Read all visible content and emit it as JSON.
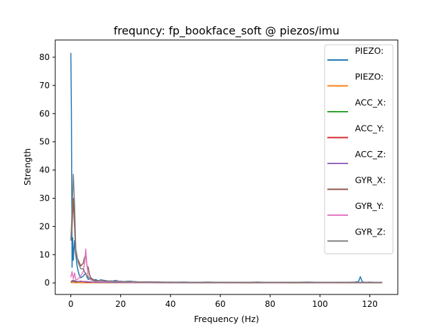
{
  "chart_data": {
    "type": "line",
    "title": "frequncy: fp_bookface_soft @ piezos/imu",
    "xlabel": "Frequency (Hz)",
    "ylabel": "Strength",
    "xlim": [
      -6.25,
      131.25
    ],
    "ylim": [
      -4.1,
      86.1
    ],
    "xticks": [
      0,
      20,
      40,
      60,
      80,
      100,
      120
    ],
    "yticks": [
      0,
      10,
      20,
      30,
      40,
      50,
      60,
      70,
      80
    ],
    "grid": false,
    "legend_position": "top-right",
    "series": [
      {
        "name": "PIEZO:",
        "color": "#1f77b4",
        "points": [
          [
            0,
            81.5
          ],
          [
            0.25,
            60
          ],
          [
            0.5,
            5.5
          ],
          [
            0.75,
            16
          ],
          [
            1,
            8
          ],
          [
            1.5,
            15
          ],
          [
            2,
            10
          ],
          [
            2.5,
            6
          ],
          [
            3,
            4
          ],
          [
            3.5,
            2.5
          ],
          [
            4,
            1.8
          ],
          [
            5,
            2.4
          ],
          [
            6,
            3.5
          ],
          [
            6.5,
            2
          ],
          [
            7,
            1.2
          ],
          [
            8,
            1.8
          ],
          [
            9,
            0.9
          ],
          [
            10,
            1.2
          ],
          [
            11,
            0.7
          ],
          [
            12,
            1.1
          ],
          [
            14,
            0.8
          ],
          [
            16,
            0.5
          ],
          [
            18,
            0.9
          ],
          [
            20,
            0.4
          ],
          [
            22,
            0.5
          ],
          [
            24,
            0.6
          ],
          [
            26,
            0.3
          ],
          [
            30,
            0.4
          ],
          [
            35,
            0.3
          ],
          [
            40,
            0.2
          ],
          [
            45,
            0.3
          ],
          [
            50,
            0.2
          ],
          [
            55,
            0.3
          ],
          [
            60,
            0.2
          ],
          [
            65,
            0.25
          ],
          [
            70,
            0.2
          ],
          [
            75,
            0.3
          ],
          [
            80,
            0.15
          ],
          [
            85,
            0.25
          ],
          [
            90,
            0.2
          ],
          [
            95,
            0.3
          ],
          [
            100,
            0.2
          ],
          [
            105,
            0.25
          ],
          [
            110,
            0.2
          ],
          [
            114,
            0.3
          ],
          [
            115.5,
            0.5
          ],
          [
            116.2,
            2.2
          ],
          [
            117,
            0.4
          ],
          [
            118,
            0.2
          ],
          [
            120,
            0.3
          ],
          [
            122,
            0.2
          ],
          [
            125,
            0.2
          ]
        ]
      },
      {
        "name": "PIEZO:",
        "color": "#ff7f0e",
        "points": [
          [
            0,
            0.1
          ],
          [
            10,
            0.05
          ],
          [
            30,
            0.05
          ],
          [
            60,
            0.05
          ],
          [
            90,
            0.05
          ],
          [
            125,
            0.05
          ]
        ]
      },
      {
        "name": "ACC_X:",
        "color": "#2ca02c",
        "points": [
          [
            0,
            0.3
          ],
          [
            1,
            0.6
          ],
          [
            2,
            0.3
          ],
          [
            4,
            0.5
          ],
          [
            6,
            0.3
          ],
          [
            10,
            0.2
          ],
          [
            20,
            0.15
          ],
          [
            40,
            0.1
          ],
          [
            80,
            0.1
          ],
          [
            125,
            0.1
          ]
        ]
      },
      {
        "name": "ACC_Y:",
        "color": "#d62728",
        "points": [
          [
            0,
            0.4
          ],
          [
            1,
            0.8
          ],
          [
            2,
            0.4
          ],
          [
            4,
            0.6
          ],
          [
            6,
            0.3
          ],
          [
            10,
            0.2
          ],
          [
            20,
            0.15
          ],
          [
            40,
            0.1
          ],
          [
            80,
            0.1
          ],
          [
            125,
            0.1
          ]
        ]
      },
      {
        "name": "ACC_Z:",
        "color": "#9467bd",
        "points": [
          [
            0,
            0.5
          ],
          [
            1,
            1.0
          ],
          [
            2,
            0.6
          ],
          [
            4,
            0.4
          ],
          [
            6,
            0.5
          ],
          [
            10,
            0.2
          ],
          [
            20,
            0.15
          ],
          [
            40,
            0.1
          ],
          [
            80,
            0.1
          ],
          [
            125,
            0.1
          ]
        ]
      },
      {
        "name": "GYR_X:",
        "color": "#8c564b",
        "points": [
          [
            0,
            15
          ],
          [
            0.5,
            20
          ],
          [
            1,
            30
          ],
          [
            1.5,
            20
          ],
          [
            2,
            10
          ],
          [
            3,
            8
          ],
          [
            4,
            6
          ],
          [
            5,
            7
          ],
          [
            5.5,
            9
          ],
          [
            6,
            10
          ],
          [
            6.5,
            6
          ],
          [
            7,
            5.5
          ],
          [
            7.5,
            3
          ],
          [
            8,
            1.8
          ],
          [
            9,
            1.2
          ],
          [
            10,
            0.8
          ],
          [
            12,
            0.9
          ],
          [
            14,
            0.6
          ],
          [
            16,
            0.7
          ],
          [
            18,
            0.5
          ],
          [
            20,
            0.6
          ],
          [
            22,
            0.4
          ],
          [
            24,
            0.5
          ],
          [
            26,
            0.3
          ],
          [
            30,
            0.35
          ],
          [
            40,
            0.25
          ],
          [
            50,
            0.2
          ],
          [
            60,
            0.2
          ],
          [
            70,
            0.15
          ],
          [
            80,
            0.2
          ],
          [
            90,
            0.15
          ],
          [
            100,
            0.2
          ],
          [
            110,
            0.15
          ],
          [
            120,
            0.15
          ],
          [
            125,
            0.15
          ]
        ]
      },
      {
        "name": "GYR_Y:",
        "color": "#e377c2",
        "points": [
          [
            0,
            2
          ],
          [
            0.5,
            4
          ],
          [
            1,
            1.5
          ],
          [
            1.5,
            3.5
          ],
          [
            2,
            1
          ],
          [
            3,
            1.5
          ],
          [
            4,
            2.5
          ],
          [
            5,
            4
          ],
          [
            5.5,
            7
          ],
          [
            6,
            12
          ],
          [
            6.5,
            6
          ],
          [
            7,
            2
          ],
          [
            8,
            1
          ],
          [
            10,
            0.6
          ],
          [
            14,
            0.4
          ],
          [
            18,
            0.6
          ],
          [
            22,
            0.3
          ],
          [
            26,
            0.4
          ],
          [
            30,
            0.3
          ],
          [
            40,
            0.2
          ],
          [
            50,
            0.25
          ],
          [
            60,
            0.2
          ],
          [
            70,
            0.25
          ],
          [
            80,
            0.2
          ],
          [
            90,
            0.25
          ],
          [
            100,
            0.2
          ],
          [
            110,
            0.2
          ],
          [
            120,
            0.2
          ],
          [
            125,
            0.2
          ]
        ]
      },
      {
        "name": "GYR_Z:",
        "color": "#7f7f7f",
        "points": [
          [
            0,
            15
          ],
          [
            0.5,
            25
          ],
          [
            1,
            38.5
          ],
          [
            1.5,
            28
          ],
          [
            2,
            12
          ],
          [
            3,
            7
          ],
          [
            4,
            5
          ],
          [
            5,
            5
          ],
          [
            6,
            3
          ],
          [
            7,
            2
          ],
          [
            8,
            1.5
          ],
          [
            9,
            0.8
          ],
          [
            10,
            0.6
          ],
          [
            12,
            0.9
          ],
          [
            14,
            0.5
          ],
          [
            16,
            0.7
          ],
          [
            18,
            0.5
          ],
          [
            20,
            0.6
          ],
          [
            22,
            0.3
          ],
          [
            25,
            0.5
          ],
          [
            28,
            0.3
          ],
          [
            32,
            0.4
          ],
          [
            36,
            0.2
          ],
          [
            40,
            0.3
          ],
          [
            50,
            0.2
          ],
          [
            60,
            0.25
          ],
          [
            70,
            0.2
          ],
          [
            80,
            0.2
          ],
          [
            90,
            0.25
          ],
          [
            100,
            0.2
          ],
          [
            110,
            0.2
          ],
          [
            120,
            0.15
          ],
          [
            125,
            0.15
          ]
        ]
      }
    ]
  }
}
